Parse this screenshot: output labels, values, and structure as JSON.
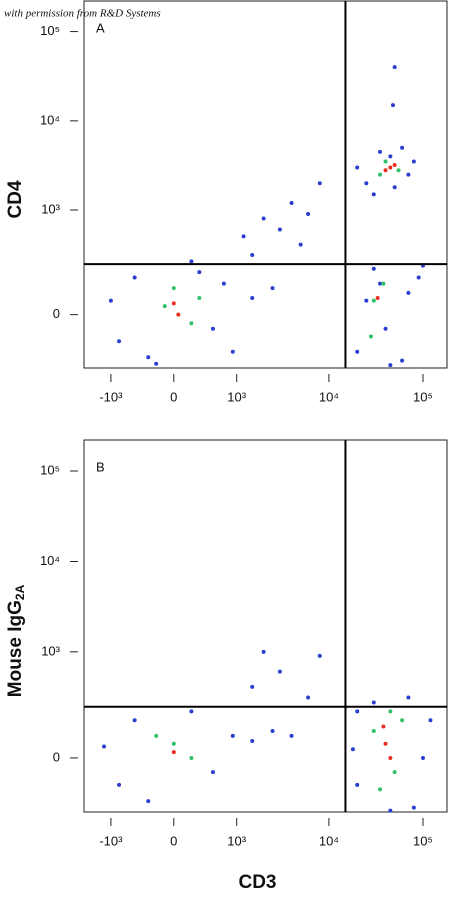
{
  "credit": "with permission from R&D Systems",
  "chart_data": [
    {
      "type": "scatter",
      "panel_label": "A",
      "ylabel": {
        "text": "CD4"
      },
      "scale": "biexponential",
      "xlim": [
        -2000,
        180000
      ],
      "ylim": [
        -250,
        220000
      ],
      "xticks": [
        {
          "value": -1000,
          "label": "-10³"
        },
        0,
        {
          "value": 1000,
          "label": "10³"
        },
        {
          "value": 10000,
          "label": "10⁴"
        },
        {
          "value": 100000,
          "label": "10⁵"
        }
      ],
      "yticks": [
        0,
        {
          "value": 1000,
          "label": "10³"
        },
        {
          "value": 10000,
          "label": "10⁴"
        },
        {
          "value": 100000,
          "label": "10⁵"
        }
      ],
      "gates": {
        "x": 15000,
        "y": 230
      },
      "series": [
        {
          "color": "#2a3fd0",
          "x": [
            -800,
            -500,
            -300,
            200,
            500,
            700,
            -1000,
            900,
            300,
            -200,
            1500,
            2500,
            1200,
            2000,
            3000,
            4000,
            6000,
            8000,
            1500,
            5000,
            20000,
            25000,
            30000,
            60000,
            80000,
            35000,
            50000,
            70000,
            45000,
            50000,
            48000,
            20000,
            30000,
            60000,
            90000,
            40000,
            25000,
            70000,
            45000,
            100000,
            35000
          ],
          "y": [
            -100,
            150,
            -180,
            250,
            -50,
            120,
            50,
            -150,
            180,
            -220,
            60,
            100,
            500,
            800,
            600,
            1200,
            900,
            2000,
            300,
            400,
            3000,
            2000,
            1500,
            5000,
            3500,
            4500,
            1800,
            2500,
            4000,
            40000,
            15000,
            -150,
            200,
            -200,
            150,
            -50,
            50,
            80,
            -230,
            220,
            120
          ]
        },
        {
          "color": "#33c06a",
          "x": [
            -100,
            200,
            0,
            300,
            40000,
            35000,
            55000,
            30000,
            38000,
            28000
          ],
          "y": [
            30,
            -30,
            100,
            60,
            3500,
            2500,
            2800,
            50,
            120,
            -80
          ]
        },
        {
          "color": "#e83020",
          "x": [
            0,
            50,
            45000,
            50000,
            40000,
            33000
          ],
          "y": [
            40,
            0,
            3000,
            3200,
            2800,
            60
          ]
        }
      ]
    },
    {
      "type": "scatter",
      "panel_label": "B",
      "ylabel": {
        "text": "Mouse IgG",
        "subscript": "2A"
      },
      "xlabel": "CD3",
      "scale": "biexponential",
      "xlim": [
        -2000,
        180000
      ],
      "ylim": [
        -250,
        220000
      ],
      "xticks": [
        {
          "value": -1000,
          "label": "-10³"
        },
        0,
        {
          "value": 1000,
          "label": "10³"
        },
        {
          "value": 10000,
          "label": "10⁴"
        },
        {
          "value": 100000,
          "label": "10⁵"
        }
      ],
      "yticks": [
        0,
        {
          "value": 1000,
          "label": "10³"
        },
        {
          "value": 10000,
          "label": "10⁴"
        },
        {
          "value": 100000,
          "label": "10⁵"
        }
      ],
      "gates": {
        "x": 15000,
        "y": 230
      },
      "series": [
        {
          "color": "#2a3fd0",
          "x": [
            -800,
            -500,
            -300,
            200,
            500,
            900,
            -1200,
            1500,
            2500,
            4000,
            1500,
            3000,
            6000,
            8000,
            2000,
            20000,
            20000,
            80000,
            120000,
            30000,
            70000,
            45000,
            100000,
            18000
          ],
          "y": [
            -100,
            150,
            -180,
            200,
            -50,
            80,
            40,
            60,
            100,
            80,
            400,
            600,
            300,
            900,
            1000,
            -100,
            200,
            -220,
            150,
            260,
            300,
            -240,
            0,
            30
          ]
        },
        {
          "color": "#33c06a",
          "x": [
            0,
            200,
            -200,
            30000,
            50000,
            60000,
            35000,
            45000
          ],
          "y": [
            50,
            0,
            80,
            100,
            -50,
            150,
            -120,
            200
          ]
        },
        {
          "color": "#e83020",
          "x": [
            0,
            40000,
            45000,
            38000
          ],
          "y": [
            20,
            50,
            0,
            120
          ]
        }
      ]
    }
  ]
}
